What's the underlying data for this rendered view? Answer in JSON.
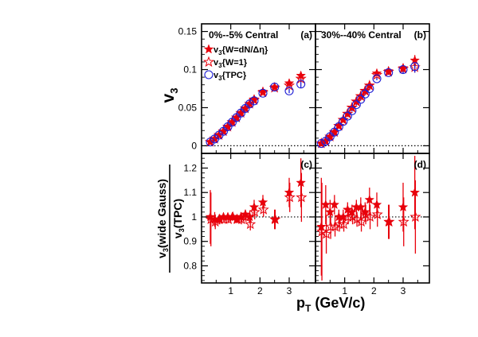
{
  "chart_data": {
    "type": "scatter",
    "colors": {
      "red": "#e8000b",
      "blue": "#1f1fd6",
      "frame": "#000000"
    },
    "xlabel": {
      "main": "p",
      "sub": "T",
      "tail": " (GeV/c)"
    },
    "top_ylabel": {
      "main": "v",
      "sub": "3"
    },
    "bottom_ylabel": {
      "num_main": "v",
      "num_sub": "3",
      "num_tail": "(wide Gauss)",
      "den_main": "v",
      "den_sub": "3",
      "den_tail": "(TPC)"
    },
    "xlim": [
      0,
      3.9
    ],
    "top_ylim": [
      -0.01,
      0.16
    ],
    "bottom_ylim": [
      0.73,
      1.26
    ],
    "x_ticks": [
      "1",
      "2",
      "3"
    ],
    "top_y_ticks": [
      "0",
      "0.05",
      "0.1",
      "0.15"
    ],
    "bottom_y_ticks": [
      "0.8",
      "0.9",
      "1",
      "1.1",
      "1.2"
    ],
    "legend": [
      {
        "main": "v",
        "sub": "3",
        "tail": "{W=dN/Δη}",
        "marker": "filled-star"
      },
      {
        "main": "v",
        "sub": "3",
        "tail": "{W=1}",
        "marker": "open-star"
      },
      {
        "main": "v",
        "sub": "3",
        "tail": "{TPC}",
        "marker": "open-circle"
      }
    ],
    "panels": [
      {
        "tag": "(a)",
        "title": "0%--5% Central",
        "kind": "v3",
        "series": [
          {
            "name": "v3{W=dN/Δη}",
            "marker": "filled-star",
            "x": [
              0.3,
              0.45,
              0.6,
              0.75,
              0.9,
              1.05,
              1.2,
              1.35,
              1.5,
              1.65,
              1.8,
              2.1,
              2.5,
              3.0,
              3.4
            ],
            "y": [
              0.005,
              0.009,
              0.014,
              0.019,
              0.025,
              0.031,
              0.037,
              0.043,
              0.049,
              0.055,
              0.061,
              0.071,
              0.077,
              0.082,
              0.092
            ],
            "err": [
              0.001,
              0.001,
              0.001,
              0.001,
              0.001,
              0.001,
              0.001,
              0.001,
              0.001,
              0.001,
              0.001,
              0.002,
              0.002,
              0.003,
              0.004
            ]
          },
          {
            "name": "v3{W=1}",
            "marker": "open-star",
            "x": [
              0.3,
              0.45,
              0.6,
              0.75,
              0.9,
              1.05,
              1.2,
              1.35,
              1.5,
              1.65,
              1.8,
              2.1,
              2.5,
              3.0,
              3.4
            ],
            "y": [
              0.005,
              0.009,
              0.014,
              0.019,
              0.025,
              0.031,
              0.037,
              0.043,
              0.049,
              0.055,
              0.06,
              0.07,
              0.076,
              0.079,
              0.088
            ],
            "err": [
              0.001,
              0.001,
              0.001,
              0.001,
              0.001,
              0.001,
              0.001,
              0.001,
              0.001,
              0.001,
              0.001,
              0.002,
              0.002,
              0.003,
              0.004
            ]
          },
          {
            "name": "v3{TPC}",
            "marker": "open-circle",
            "x": [
              0.3,
              0.45,
              0.6,
              0.75,
              0.9,
              1.05,
              1.2,
              1.35,
              1.5,
              1.65,
              1.8,
              2.1,
              2.5,
              3.0,
              3.4
            ],
            "y": [
              0.005,
              0.009,
              0.014,
              0.019,
              0.025,
              0.031,
              0.037,
              0.043,
              0.049,
              0.055,
              0.059,
              0.069,
              0.077,
              0.072,
              0.081
            ],
            "err": [
              0.001,
              0.001,
              0.001,
              0.001,
              0.001,
              0.001,
              0.001,
              0.001,
              0.001,
              0.001,
              0.001,
              0.001,
              0.002,
              0.003,
              0.005
            ]
          }
        ]
      },
      {
        "tag": "(b)",
        "title": "30%--40% Central",
        "kind": "v3",
        "series": [
          {
            "name": "v3{W=dN/Δη}",
            "marker": "filled-star",
            "x": [
              0.2,
              0.35,
              0.5,
              0.65,
              0.8,
              0.95,
              1.1,
              1.25,
              1.4,
              1.55,
              1.7,
              1.85,
              2.1,
              2.5,
              3.0,
              3.4
            ],
            "y": [
              0.003,
              0.006,
              0.012,
              0.018,
              0.026,
              0.034,
              0.042,
              0.05,
              0.058,
              0.065,
              0.072,
              0.079,
              0.095,
              0.098,
              0.102,
              0.112
            ],
            "err": [
              0.001,
              0.001,
              0.001,
              0.001,
              0.001,
              0.001,
              0.001,
              0.001,
              0.001,
              0.001,
              0.001,
              0.002,
              0.002,
              0.003,
              0.005,
              0.007
            ]
          },
          {
            "name": "v3{W=1}",
            "marker": "open-star",
            "x": [
              0.2,
              0.35,
              0.5,
              0.65,
              0.8,
              0.95,
              1.1,
              1.25,
              1.4,
              1.55,
              1.7,
              1.85,
              2.1,
              2.5,
              3.0,
              3.4
            ],
            "y": [
              0.003,
              0.006,
              0.012,
              0.018,
              0.026,
              0.034,
              0.042,
              0.05,
              0.058,
              0.065,
              0.072,
              0.079,
              0.093,
              0.097,
              0.101,
              0.103
            ],
            "err": [
              0.001,
              0.001,
              0.001,
              0.001,
              0.001,
              0.001,
              0.001,
              0.001,
              0.001,
              0.001,
              0.001,
              0.002,
              0.002,
              0.003,
              0.005,
              0.007
            ]
          },
          {
            "name": "v3{TPC}",
            "marker": "open-circle",
            "x": [
              0.2,
              0.35,
              0.5,
              0.65,
              0.8,
              0.95,
              1.1,
              1.25,
              1.4,
              1.55,
              1.7,
              1.85,
              2.1,
              2.5,
              3.0,
              3.4
            ],
            "y": [
              0.003,
              0.006,
              0.012,
              0.018,
              0.025,
              0.032,
              0.039,
              0.046,
              0.054,
              0.061,
              0.068,
              0.075,
              0.088,
              0.096,
              0.1,
              0.104
            ],
            "err": [
              0.001,
              0.001,
              0.001,
              0.001,
              0.001,
              0.001,
              0.001,
              0.001,
              0.001,
              0.001,
              0.001,
              0.002,
              0.002,
              0.003,
              0.005,
              0.008
            ]
          }
        ]
      },
      {
        "tag": "(c)",
        "kind": "ratio",
        "reference_line": 1,
        "series": [
          {
            "name": "v3{W=dN/Δη}/v3{TPC}",
            "marker": "filled-star",
            "x": [
              0.3,
              0.45,
              0.6,
              0.75,
              0.9,
              1.05,
              1.2,
              1.35,
              1.5,
              1.65,
              1.8,
              2.1,
              2.5,
              3.0,
              3.4
            ],
            "y": [
              1.0,
              0.99,
              0.99,
              1.0,
              1.0,
              1.0,
              0.99,
              1.0,
              1.01,
              1.0,
              1.04,
              1.06,
              0.99,
              1.1,
              1.14
            ],
            "err": [
              0.11,
              0.03,
              0.02,
              0.015,
              0.015,
              0.015,
              0.015,
              0.02,
              0.02,
              0.025,
              0.03,
              0.03,
              0.04,
              0.06,
              0.1
            ]
          },
          {
            "name": "v3{W=1}/v3{TPC}",
            "marker": "open-star",
            "x": [
              0.32,
              0.47,
              0.62,
              0.77,
              0.92,
              1.07,
              1.22,
              1.37,
              1.52,
              1.67,
              1.82,
              2.12,
              2.52,
              3.02,
              3.42
            ],
            "y": [
              0.99,
              0.98,
              0.99,
              0.99,
              0.99,
              1.0,
              0.99,
              0.99,
              1.0,
              0.97,
              1.02,
              1.03,
              0.99,
              1.08,
              1.08
            ],
            "err": [
              0.11,
              0.03,
              0.02,
              0.015,
              0.015,
              0.015,
              0.015,
              0.02,
              0.02,
              0.025,
              0.03,
              0.03,
              0.04,
              0.06,
              0.1
            ]
          }
        ]
      },
      {
        "tag": "(d)",
        "kind": "ratio",
        "reference_line": 1,
        "series": [
          {
            "name": "v3{W=dN/Δη}/v3{TPC}",
            "marker": "filled-star",
            "x": [
              0.2,
              0.35,
              0.5,
              0.65,
              0.8,
              0.95,
              1.1,
              1.25,
              1.4,
              1.55,
              1.7,
              1.85,
              2.1,
              2.5,
              3.0,
              3.4
            ],
            "y": [
              0.96,
              1.05,
              1.02,
              1.05,
              1.0,
              1.0,
              1.03,
              1.02,
              1.04,
              1.04,
              1.02,
              1.07,
              1.05,
              0.98,
              1.04,
              1.1
            ],
            "err": [
              0.2,
              0.08,
              0.05,
              0.04,
              0.03,
              0.03,
              0.03,
              0.03,
              0.03,
              0.04,
              0.04,
              0.05,
              0.05,
              0.07,
              0.1,
              0.15
            ]
          },
          {
            "name": "v3{W=1}/v3{TPC}",
            "marker": "open-star",
            "x": [
              0.22,
              0.37,
              0.52,
              0.67,
              0.82,
              0.97,
              1.12,
              1.27,
              1.42,
              1.57,
              1.72,
              1.87,
              2.12,
              2.52,
              3.02,
              3.42
            ],
            "y": [
              0.94,
              0.93,
              0.96,
              0.96,
              0.97,
              0.97,
              1.0,
              1.0,
              0.99,
              0.98,
              1.01,
              1.0,
              1.01,
              0.98,
              0.98,
              1.0
            ],
            "err": [
              0.2,
              0.08,
              0.05,
              0.04,
              0.03,
              0.03,
              0.03,
              0.03,
              0.03,
              0.04,
              0.04,
              0.05,
              0.05,
              0.07,
              0.1,
              0.15
            ]
          }
        ]
      }
    ]
  }
}
